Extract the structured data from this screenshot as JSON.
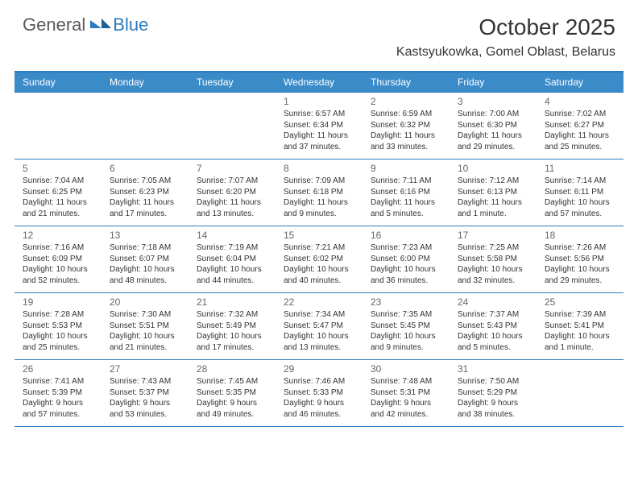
{
  "brand": {
    "part1": "General",
    "part2": "Blue"
  },
  "title": "October 2025",
  "location": "Kastsyukowka, Gomel Oblast, Belarus",
  "colors": {
    "header_bar": "#3b8bc9",
    "rule": "#2b7bbf",
    "text": "#333333",
    "muted": "#666666",
    "brand_gray": "#5a5a5a",
    "brand_blue": "#2b7bbf",
    "background": "#ffffff"
  },
  "typography": {
    "title_fontsize": 28,
    "location_fontsize": 16,
    "dow_fontsize": 12,
    "daynum_fontsize": 12,
    "info_fontsize": 10,
    "logo_fontsize": 22
  },
  "dow": [
    "Sunday",
    "Monday",
    "Tuesday",
    "Wednesday",
    "Thursday",
    "Friday",
    "Saturday"
  ],
  "weeks": [
    [
      null,
      null,
      null,
      {
        "n": "1",
        "sr": "6:57 AM",
        "ss": "6:34 PM",
        "dl": "11 hours and 37 minutes."
      },
      {
        "n": "2",
        "sr": "6:59 AM",
        "ss": "6:32 PM",
        "dl": "11 hours and 33 minutes."
      },
      {
        "n": "3",
        "sr": "7:00 AM",
        "ss": "6:30 PM",
        "dl": "11 hours and 29 minutes."
      },
      {
        "n": "4",
        "sr": "7:02 AM",
        "ss": "6:27 PM",
        "dl": "11 hours and 25 minutes."
      }
    ],
    [
      {
        "n": "5",
        "sr": "7:04 AM",
        "ss": "6:25 PM",
        "dl": "11 hours and 21 minutes."
      },
      {
        "n": "6",
        "sr": "7:05 AM",
        "ss": "6:23 PM",
        "dl": "11 hours and 17 minutes."
      },
      {
        "n": "7",
        "sr": "7:07 AM",
        "ss": "6:20 PM",
        "dl": "11 hours and 13 minutes."
      },
      {
        "n": "8",
        "sr": "7:09 AM",
        "ss": "6:18 PM",
        "dl": "11 hours and 9 minutes."
      },
      {
        "n": "9",
        "sr": "7:11 AM",
        "ss": "6:16 PM",
        "dl": "11 hours and 5 minutes."
      },
      {
        "n": "10",
        "sr": "7:12 AM",
        "ss": "6:13 PM",
        "dl": "11 hours and 1 minute."
      },
      {
        "n": "11",
        "sr": "7:14 AM",
        "ss": "6:11 PM",
        "dl": "10 hours and 57 minutes."
      }
    ],
    [
      {
        "n": "12",
        "sr": "7:16 AM",
        "ss": "6:09 PM",
        "dl": "10 hours and 52 minutes."
      },
      {
        "n": "13",
        "sr": "7:18 AM",
        "ss": "6:07 PM",
        "dl": "10 hours and 48 minutes."
      },
      {
        "n": "14",
        "sr": "7:19 AM",
        "ss": "6:04 PM",
        "dl": "10 hours and 44 minutes."
      },
      {
        "n": "15",
        "sr": "7:21 AM",
        "ss": "6:02 PM",
        "dl": "10 hours and 40 minutes."
      },
      {
        "n": "16",
        "sr": "7:23 AM",
        "ss": "6:00 PM",
        "dl": "10 hours and 36 minutes."
      },
      {
        "n": "17",
        "sr": "7:25 AM",
        "ss": "5:58 PM",
        "dl": "10 hours and 32 minutes."
      },
      {
        "n": "18",
        "sr": "7:26 AM",
        "ss": "5:56 PM",
        "dl": "10 hours and 29 minutes."
      }
    ],
    [
      {
        "n": "19",
        "sr": "7:28 AM",
        "ss": "5:53 PM",
        "dl": "10 hours and 25 minutes."
      },
      {
        "n": "20",
        "sr": "7:30 AM",
        "ss": "5:51 PM",
        "dl": "10 hours and 21 minutes."
      },
      {
        "n": "21",
        "sr": "7:32 AM",
        "ss": "5:49 PM",
        "dl": "10 hours and 17 minutes."
      },
      {
        "n": "22",
        "sr": "7:34 AM",
        "ss": "5:47 PM",
        "dl": "10 hours and 13 minutes."
      },
      {
        "n": "23",
        "sr": "7:35 AM",
        "ss": "5:45 PM",
        "dl": "10 hours and 9 minutes."
      },
      {
        "n": "24",
        "sr": "7:37 AM",
        "ss": "5:43 PM",
        "dl": "10 hours and 5 minutes."
      },
      {
        "n": "25",
        "sr": "7:39 AM",
        "ss": "5:41 PM",
        "dl": "10 hours and 1 minute."
      }
    ],
    [
      {
        "n": "26",
        "sr": "7:41 AM",
        "ss": "5:39 PM",
        "dl": "9 hours and 57 minutes."
      },
      {
        "n": "27",
        "sr": "7:43 AM",
        "ss": "5:37 PM",
        "dl": "9 hours and 53 minutes."
      },
      {
        "n": "28",
        "sr": "7:45 AM",
        "ss": "5:35 PM",
        "dl": "9 hours and 49 minutes."
      },
      {
        "n": "29",
        "sr": "7:46 AM",
        "ss": "5:33 PM",
        "dl": "9 hours and 46 minutes."
      },
      {
        "n": "30",
        "sr": "7:48 AM",
        "ss": "5:31 PM",
        "dl": "9 hours and 42 minutes."
      },
      {
        "n": "31",
        "sr": "7:50 AM",
        "ss": "5:29 PM",
        "dl": "9 hours and 38 minutes."
      },
      null
    ]
  ],
  "labels": {
    "sunrise": "Sunrise:",
    "sunset": "Sunset:",
    "daylight": "Daylight:"
  }
}
